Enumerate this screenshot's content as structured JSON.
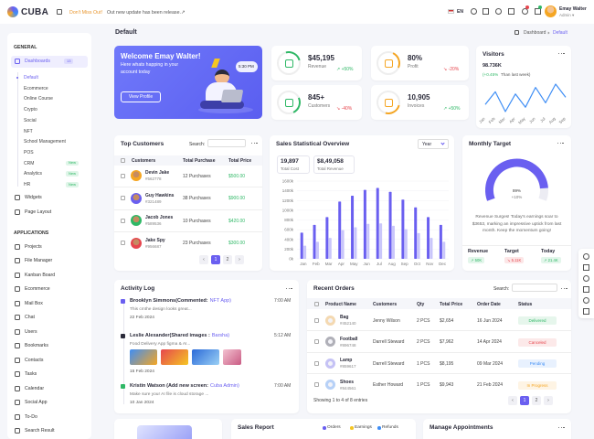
{
  "header": {
    "logo": "CUBA",
    "notice_highlight": "Don't Miss Out!",
    "notice": "Out new update has been release.↗",
    "language": "EN",
    "user_name": "Emay Walter",
    "user_role": "Admin ▾"
  },
  "sidebar": {
    "sections": [
      {
        "title": "GENERAL",
        "items": [
          {
            "label": "Dashboards",
            "badge": "13",
            "sub": [
              {
                "label": "Default"
              },
              {
                "label": "Ecommerce"
              },
              {
                "label": "Online Course"
              },
              {
                "label": "Crypto"
              },
              {
                "label": "Social"
              },
              {
                "label": "NFT"
              },
              {
                "label": "School Management"
              },
              {
                "label": "POS"
              },
              {
                "label": "CRM",
                "badge": "New"
              },
              {
                "label": "Analytics",
                "badge": "New"
              },
              {
                "label": "HR",
                "badge": "New"
              }
            ]
          },
          {
            "label": "Widgets"
          },
          {
            "label": "Page Layout"
          }
        ]
      },
      {
        "title": "APPLICATIONS",
        "items": [
          {
            "label": "Projects"
          },
          {
            "label": "File Manager"
          },
          {
            "label": "Kanban Board"
          },
          {
            "label": "Ecommerce"
          },
          {
            "label": "Mail Box"
          },
          {
            "label": "Chat"
          },
          {
            "label": "Users"
          },
          {
            "label": "Bookmarks"
          },
          {
            "label": "Contacts"
          },
          {
            "label": "Tasks"
          },
          {
            "label": "Calendar"
          },
          {
            "label": "Social App"
          },
          {
            "label": "To-Do"
          },
          {
            "label": "Search Result"
          }
        ]
      }
    ]
  },
  "page": {
    "title": "Default",
    "breadcrumb": [
      "Dashboard",
      "Default"
    ]
  },
  "welcome": {
    "title": "Welcome Emay Walter!",
    "text": "Here whats happing in your account today",
    "button": "View Profile",
    "time": "5:30 PM"
  },
  "stats": [
    {
      "value": "$45,195",
      "label": "Revenue",
      "change": "↗ +50%",
      "color": "#2fb866"
    },
    {
      "value": "80%",
      "label": "Profit",
      "change": "↘ -20%",
      "color": "#e6464e"
    },
    {
      "value": "845+",
      "label": "Customers",
      "change": "↘ -40%",
      "color": "#e6464e"
    },
    {
      "value": "10,905",
      "label": "Invoices",
      "change": "↗ +50%",
      "color": "#2fb866"
    }
  ],
  "visitors": {
    "title": "Visitors",
    "value": "98.736K",
    "change": "(+0.45%",
    "note": "Than last week)",
    "chart": {
      "type": "line",
      "categories": [
        "Jan",
        "Feb",
        "Mar",
        "Apr",
        "May",
        "Jun",
        "Jul",
        "Aug",
        "Sep"
      ],
      "values": [
        55,
        78,
        42,
        74,
        50,
        86,
        58,
        92,
        68
      ],
      "color": "#3f8ef5"
    }
  },
  "top_customers": {
    "title": "Top Customers",
    "search": "Search:",
    "columns": [
      "Customers",
      "Total Purchase",
      "Total Price"
    ],
    "rows": [
      [
        "Devin Jake",
        "#562778",
        "12 Purchases",
        "$500.00"
      ],
      [
        "Guy Hawkins",
        "#321489",
        "38 Purchases",
        "$900.00"
      ],
      [
        "Jacob Jones",
        "#589536",
        "10 Purchases",
        "$420.00"
      ],
      [
        "Jake Spy",
        "#956687",
        "23 Purchases",
        "$300.00"
      ]
    ],
    "pagination": [
      "‹",
      "1",
      "2",
      "›"
    ]
  },
  "sales_overview": {
    "title": "Sales Statistical Overview",
    "dropdown": "Year",
    "stats": [
      {
        "value": "19,897",
        "label": "Total Cost"
      },
      {
        "value": "$8,49,058",
        "label": "Total Revenue"
      }
    ],
    "chart": {
      "type": "bar",
      "categories": [
        "Jan",
        "Feb",
        "Mar",
        "Apr",
        "May",
        "Jun",
        "Jul",
        "Aug",
        "Sep",
        "Oct",
        "Nov",
        "Dec"
      ],
      "series": [
        {
          "color": "#6a5ff0",
          "values": [
            540,
            700,
            860,
            1180,
            1300,
            1420,
            1460,
            1380,
            1220,
            1060,
            860,
            700
          ]
        },
        {
          "color": "#c9c6fb",
          "values": [
            270,
            350,
            430,
            590,
            650,
            720,
            730,
            680,
            610,
            530,
            430,
            350
          ]
        }
      ],
      "ylim": [
        0,
        1600
      ],
      "yticks": [
        {
          "value": 0,
          "label": "0k"
        },
        {
          "value": 200,
          "label": "200k"
        },
        {
          "value": 400,
          "label": "400k"
        },
        {
          "value": 600,
          "label": "600k"
        },
        {
          "value": 800,
          "label": "800k"
        },
        {
          "value": 1000,
          "label": "1000k"
        },
        {
          "value": 1200,
          "label": "1200k"
        },
        {
          "value": 1400,
          "label": "1400k"
        },
        {
          "value": 1600,
          "label": "1600k"
        }
      ]
    }
  },
  "monthly_target": {
    "title": "Monthly Target",
    "gauge": {
      "type": "gauge",
      "value": 89,
      "label": "89%",
      "ylim": [
        0,
        100
      ],
      "color": "#6a5ff0"
    },
    "change": "+10%",
    "text": "Revenue Surges! Today's earnings soar to $3653, marking an impressive uptick from last month. Keep the momentum going!",
    "footer": [
      {
        "label": "Revenue",
        "value": "↗ 50K",
        "color": "#2fb866"
      },
      {
        "label": "Target",
        "value": "↘ 5.11K",
        "color": "#e6464e"
      },
      {
        "label": "Today",
        "value": "↗ 21.4K",
        "color": "#2fb866"
      }
    ]
  },
  "activity_log": {
    "title": "Activity Log",
    "items": [
      {
        "name": "Brooklyn Simmons(Commented:",
        "link": "NFT App)",
        "time": "7:00 AM",
        "text": "This cmthe design looks great...",
        "date": "22 Feb 2024",
        "color": "#6a5ff0"
      },
      {
        "name": "Leslie Alexander(Shared images :",
        "link": "Barsha)",
        "time": "5:12 AM",
        "text": "Food Delivery App figma & AI...",
        "date": "15 Feb 2024",
        "color": "#2b2b3a"
      },
      {
        "name": "Kristin Watson (Add new screen:",
        "link": "Cuba Admin)",
        "time": "7:00 AM",
        "text": "Make sure your AI file is cloud storage ...",
        "date": "10 Jan 2024",
        "color": "#2fb866"
      }
    ]
  },
  "recent_orders": {
    "title": "Recent Orders",
    "search": "Search:",
    "columns": [
      "Product Name",
      "Customers",
      "Qty",
      "Total Price",
      "Order Date",
      "Status"
    ],
    "rows": [
      {
        "cells": [
          "Bag",
          "#452140",
          "Jenny Wilson",
          "2 PCS",
          "$2,654",
          "16 Jun 2024",
          "Delivered"
        ],
        "color": "#2fb866"
      },
      {
        "cells": [
          "Football",
          "#896748",
          "Darrell Steward",
          "2 PCS",
          "$7,962",
          "14 Apr 2024",
          "Canceled"
        ],
        "color": "#e6464e"
      },
      {
        "cells": [
          "Lamp",
          "#859617",
          "Darrell Steward",
          "1 PCS",
          "$8,195",
          "09 Mar 2024",
          "Pending"
        ],
        "color": "#3f8ef5"
      },
      {
        "cells": [
          "Shoes",
          "#844561",
          "Esther Howard",
          "1 PCS",
          "$9,943",
          "21 Feb 2024",
          "In Progress"
        ],
        "color": "#f5a623"
      }
    ],
    "footer": "Showing 1 to 4 of 8 entries",
    "pagination": [
      "‹",
      "1",
      "2",
      "›"
    ]
  },
  "sales_report": {
    "title": "Sales Report",
    "legend": [
      {
        "label": "Orders",
        "color": "#6a5ff0"
      },
      {
        "label": "Earnings",
        "color": "#f5c623"
      },
      {
        "label": "Refunds",
        "color": "#3f8ef5"
      }
    ]
  },
  "appointments": {
    "title": "Manage Appointments"
  }
}
